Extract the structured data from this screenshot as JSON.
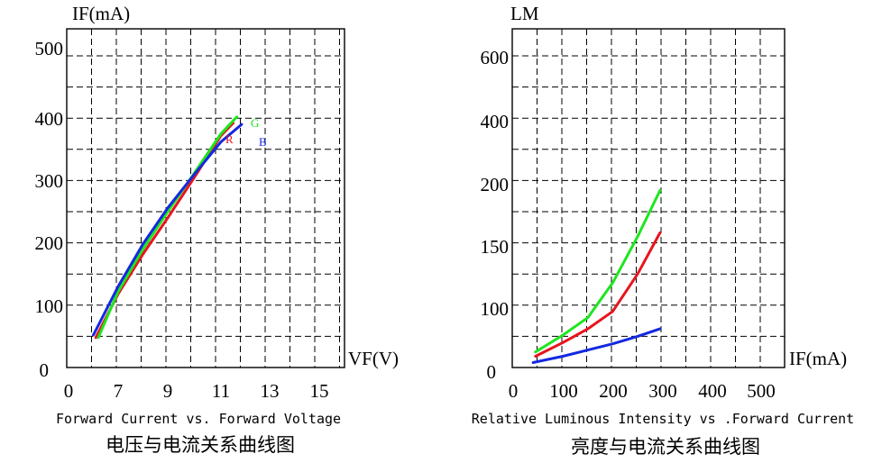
{
  "colors": {
    "red": "#e8141e",
    "green": "#1ee61e",
    "blue": "#1428e0"
  },
  "chart_data": [
    {
      "type": "line",
      "xlabel": "VF(V)",
      "ylabel": "IF(mA)",
      "caption": "Forward Current vs. Forward Voltage",
      "caption_cn": "电压与电流关系曲线图",
      "x_ticks": [
        "0",
        "7",
        "9",
        "11",
        "13",
        "15"
      ],
      "y_ticks": [
        "0",
        "100",
        "200",
        "300",
        "400",
        "500"
      ],
      "series": [
        {
          "name": "R",
          "color": "#e8141e",
          "points": [
            [
              6.1,
              48
            ],
            [
              7.0,
              118
            ],
            [
              8.0,
              182
            ],
            [
              9.0,
              240
            ],
            [
              10.0,
              305
            ],
            [
              11.0,
              372
            ],
            [
              11.5,
              392
            ]
          ]
        },
        {
          "name": "G",
          "color": "#1ee61e",
          "points": [
            [
              6.2,
              48
            ],
            [
              7.0,
              122
            ],
            [
              8.0,
              190
            ],
            [
              9.0,
              250
            ],
            [
              10.0,
              312
            ],
            [
              11.0,
              375
            ],
            [
              11.65,
              402
            ]
          ]
        },
        {
          "name": "B",
          "color": "#1428e0",
          "points": [
            [
              6.0,
              52
            ],
            [
              7.0,
              130
            ],
            [
              8.0,
              198
            ],
            [
              9.0,
              256
            ],
            [
              10.0,
              310
            ],
            [
              11.0,
              362
            ],
            [
              11.85,
              390
            ]
          ]
        }
      ]
    },
    {
      "type": "line",
      "xlabel": "IF(mA)",
      "ylabel": "LM",
      "caption": "Relative Luminous Intensity vs .Forward Current",
      "caption_cn": "亮度与电流关系曲线图",
      "x_ticks": [
        "0",
        "100",
        "200",
        "300",
        "400",
        "500"
      ],
      "y_ticks": [
        "0",
        "100",
        "150",
        "200",
        "400",
        "600"
      ],
      "series": [
        {
          "name": "",
          "color": "#1ee61e",
          "points": [
            [
              45,
              25
            ],
            [
              100,
              52
            ],
            [
              150,
              80
            ],
            [
              200,
              118
            ],
            [
              250,
              155
            ],
            [
              295,
              192
            ]
          ]
        },
        {
          "name": "",
          "color": "#e8141e",
          "points": [
            [
              45,
              18
            ],
            [
              100,
              40
            ],
            [
              150,
              62
            ],
            [
              200,
              90
            ],
            [
              250,
              125
            ],
            [
              295,
              158
            ]
          ]
        },
        {
          "name": "",
          "color": "#1428e0",
          "points": [
            [
              40,
              8
            ],
            [
              100,
              18
            ],
            [
              150,
              28
            ],
            [
              200,
              38
            ],
            [
              250,
              50
            ],
            [
              295,
              62
            ]
          ]
        }
      ]
    }
  ]
}
